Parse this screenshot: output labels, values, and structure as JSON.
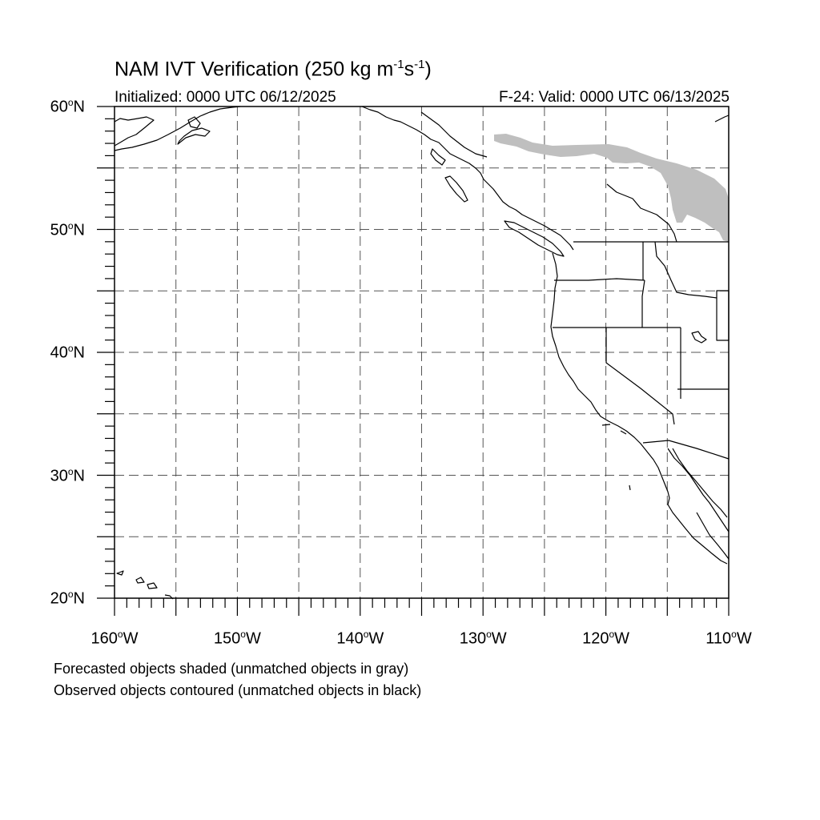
{
  "title": {
    "text": "NAM IVT Verification (250 kg m",
    "sup1": "-1",
    "mid": "s",
    "sup2": "-1",
    "end": ")"
  },
  "initialized": "Initialized: 0000 UTC 06/12/2025",
  "valid": "F-24: Valid: 0000 UTC 06/13/2025",
  "map": {
    "lat_range": [
      20,
      60
    ],
    "lon_range": [
      -160,
      -110
    ],
    "grid_lines": "dashed",
    "lat_ticks": [
      {
        "value": 60,
        "label": "60",
        "hem": "N"
      },
      {
        "value": 50,
        "label": "50",
        "hem": "N"
      },
      {
        "value": 40,
        "label": "40",
        "hem": "N"
      },
      {
        "value": 30,
        "label": "30",
        "hem": "N"
      },
      {
        "value": 20,
        "label": "20",
        "hem": "N"
      }
    ],
    "lon_ticks": [
      {
        "value": -160,
        "label": "160",
        "hem": "W"
      },
      {
        "value": -150,
        "label": "150",
        "hem": "W"
      },
      {
        "value": -140,
        "label": "140",
        "hem": "W"
      },
      {
        "value": -130,
        "label": "130",
        "hem": "W"
      },
      {
        "value": -120,
        "label": "120",
        "hem": "W"
      },
      {
        "value": -110,
        "label": "110",
        "hem": "W"
      }
    ],
    "colors": {
      "forecast_unmatched": "#bfbfbf",
      "observed_unmatched": "#000000",
      "coastline": "#000000",
      "grid": "#555555"
    }
  },
  "footnotes": [
    "Forecasted objects shaded (unmatched objects in gray)",
    "Observed objects contoured (unmatched objects in black)"
  ]
}
